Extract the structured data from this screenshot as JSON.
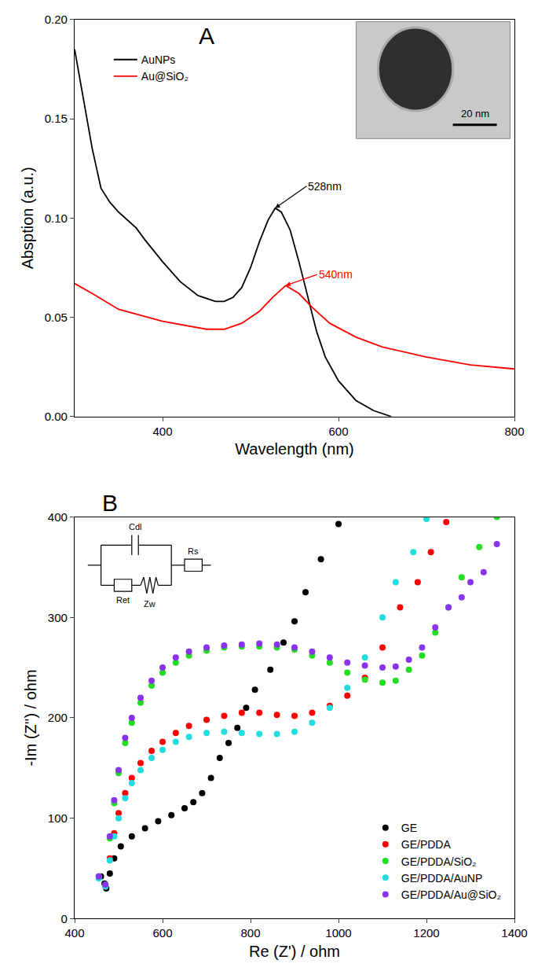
{
  "chart_data": [
    {
      "type": "line",
      "title": "A",
      "x_label": "Wavelength (nm)",
      "y_label": "Absption (a.u.)",
      "xlim": [
        300,
        800
      ],
      "xticks": [
        400,
        600,
        800
      ],
      "ylim": [
        0,
        0.2
      ],
      "yticks": [
        {
          "value": 0,
          "label": "0.00"
        },
        {
          "value": 0.05,
          "label": "0.05"
        },
        {
          "value": 0.1,
          "label": "0.10"
        },
        {
          "value": 0.15,
          "label": "0.15"
        },
        {
          "value": 0.2,
          "label": "0.20"
        }
      ],
      "grid": false,
      "legend": "upper left",
      "series": [
        {
          "name": "AuNPs",
          "color": "#000000",
          "x": [
            300,
            310,
            320,
            330,
            340,
            350,
            360,
            370,
            380,
            400,
            420,
            440,
            460,
            470,
            480,
            490,
            500,
            510,
            520,
            528,
            535,
            545,
            555,
            565,
            575,
            585,
            600,
            620,
            640,
            660
          ],
          "values": [
            0.185,
            0.16,
            0.135,
            0.115,
            0.108,
            0.103,
            0.099,
            0.095,
            0.089,
            0.078,
            0.068,
            0.061,
            0.058,
            0.058,
            0.06,
            0.065,
            0.075,
            0.088,
            0.099,
            0.105,
            0.103,
            0.094,
            0.078,
            0.06,
            0.043,
            0.03,
            0.018,
            0.008,
            0.003,
            0.0
          ]
        },
        {
          "name": "Au@SiO₂",
          "color": "#ff0000",
          "x": [
            300,
            320,
            350,
            400,
            450,
            470,
            490,
            510,
            525,
            540,
            555,
            570,
            590,
            620,
            650,
            700,
            750,
            800
          ],
          "values": [
            0.067,
            0.062,
            0.054,
            0.048,
            0.044,
            0.044,
            0.047,
            0.053,
            0.06,
            0.066,
            0.062,
            0.055,
            0.047,
            0.04,
            0.035,
            0.03,
            0.026,
            0.024
          ]
        }
      ],
      "annotations": [
        {
          "text": "528nm",
          "x": 528,
          "y": 0.105,
          "color": "#000000"
        },
        {
          "text": "540nm",
          "x": 540,
          "y": 0.066,
          "color": "#ff0000"
        }
      ],
      "inset_label": "20 nm"
    },
    {
      "type": "scatter",
      "title": "B",
      "x_label": "Re (Z') / ohm",
      "y_label": "-Im (Z'') / ohm",
      "xlim": [
        400,
        1400
      ],
      "xticks": [
        400,
        600,
        800,
        1000,
        1200,
        1400
      ],
      "ylim": [
        0,
        400
      ],
      "yticks": [
        0,
        100,
        200,
        300,
        400
      ],
      "grid": false,
      "legend": "lower right",
      "marker": "circle",
      "series": [
        {
          "name": "GE",
          "color": "#000000",
          "x": [
            460,
            468,
            472,
            480,
            490,
            505,
            530,
            560,
            590,
            620,
            650,
            670,
            690,
            710,
            730,
            750,
            770,
            790,
            810,
            845,
            875,
            900,
            925,
            960,
            1000
          ],
          "values": [
            42,
            35,
            30,
            45,
            60,
            72,
            82,
            90,
            97,
            103,
            110,
            116,
            125,
            140,
            160,
            175,
            190,
            210,
            228,
            248,
            275,
            296,
            325,
            358,
            393
          ]
        },
        {
          "name": "GE/PDDA",
          "color": "#ff0000",
          "x": [
            455,
            470,
            480,
            490,
            500,
            515,
            530,
            550,
            575,
            600,
            630,
            660,
            700,
            740,
            780,
            820,
            860,
            900,
            940,
            980,
            1020,
            1060,
            1100,
            1140,
            1180,
            1210,
            1245
          ],
          "values": [
            42,
            32,
            60,
            85,
            105,
            125,
            140,
            155,
            167,
            176,
            185,
            192,
            198,
            202,
            205,
            205,
            203,
            202,
            205,
            212,
            222,
            240,
            270,
            310,
            335,
            365,
            395
          ]
        },
        {
          "name": "GE/PDDA/SiO₂",
          "color": "#22dd22",
          "x": [
            455,
            470,
            480,
            490,
            500,
            515,
            530,
            550,
            575,
            600,
            630,
            660,
            700,
            740,
            780,
            820,
            860,
            900,
            940,
            980,
            1020,
            1060,
            1100,
            1130,
            1160,
            1190,
            1220,
            1250,
            1280,
            1320,
            1360
          ],
          "values": [
            42,
            34,
            80,
            115,
            145,
            175,
            195,
            215,
            232,
            245,
            255,
            262,
            267,
            270,
            271,
            271,
            270,
            268,
            262,
            255,
            245,
            238,
            235,
            237,
            248,
            262,
            285,
            310,
            340,
            370,
            400
          ]
        },
        {
          "name": "GE/PDDA/AuNP",
          "color": "#22dddd",
          "x": [
            455,
            470,
            480,
            490,
            500,
            515,
            530,
            550,
            575,
            600,
            630,
            660,
            700,
            740,
            780,
            820,
            860,
            900,
            940,
            980,
            1020,
            1060,
            1100,
            1130,
            1170,
            1200
          ],
          "values": [
            40,
            32,
            58,
            82,
            100,
            120,
            135,
            148,
            160,
            168,
            176,
            181,
            185,
            186,
            185,
            184,
            184,
            186,
            195,
            210,
            230,
            260,
            300,
            335,
            365,
            398
          ]
        },
        {
          "name": "GE/PDDA/Au@SiO₂",
          "color": "#8833ee",
          "x": [
            455,
            470,
            480,
            490,
            500,
            515,
            530,
            550,
            575,
            600,
            630,
            660,
            700,
            740,
            780,
            820,
            860,
            900,
            940,
            980,
            1020,
            1060,
            1100,
            1130,
            1160,
            1190,
            1220,
            1250,
            1280,
            1300,
            1330,
            1360
          ],
          "values": [
            42,
            34,
            82,
            118,
            148,
            180,
            200,
            220,
            237,
            250,
            260,
            266,
            270,
            272,
            273,
            274,
            273,
            270,
            266,
            260,
            255,
            252,
            250,
            251,
            258,
            270,
            290,
            310,
            320,
            335,
            345,
            373
          ]
        }
      ],
      "circuit_labels": [
        "Cdl",
        "Ret",
        "Zw",
        "Rs"
      ]
    }
  ]
}
